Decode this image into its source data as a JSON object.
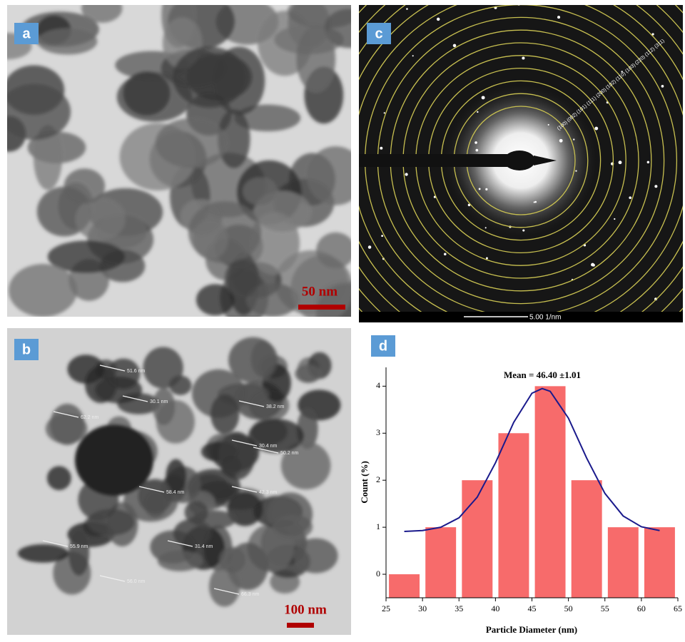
{
  "panels": [
    {
      "label": "a",
      "scale_bar": "50 nm"
    },
    {
      "label": "c",
      "scale_bar": "5.00 1/nm",
      "ring_labels": [
        "(100)",
        "(002)",
        "(101)",
        "(111)",
        "(200)",
        "(102)",
        "(110)",
        "(103)",
        "(220)",
        "(112)",
        "(311)"
      ]
    },
    {
      "label": "b",
      "scale_bar": "100 nm",
      "measurements": [
        "51.6 nm",
        "30.1 nm",
        "62.2 nm",
        "38.2 nm",
        "30.4 nm",
        "50.2 nm",
        "42.3 nm",
        "58.4 nm",
        "55.9 nm",
        "31.4 nm",
        "56.0 nm",
        "66.3 nm"
      ]
    }
  ],
  "chart_data": {
    "type": "histogram",
    "panel_label": "d",
    "title": "Mean = 46.40 ±1.01",
    "x_label": "Particle Diameter (nm)",
    "y_label": "Count (%)",
    "bins": [
      25,
      30,
      35,
      40,
      45,
      50,
      55,
      60,
      65
    ],
    "values": [
      0,
      1,
      2,
      3,
      4,
      2,
      1,
      1
    ],
    "color": "#f76b6b",
    "xlim": [
      25,
      65
    ],
    "xticks": [
      25,
      30,
      35,
      40,
      45,
      50,
      55,
      60,
      65
    ],
    "ylim": [
      -0.5,
      4.4
    ],
    "yticks": [
      0,
      1,
      2,
      3,
      4
    ],
    "fit": {
      "color": "#1a1a8c",
      "x": [
        27.5,
        30,
        32.5,
        35,
        37.5,
        40,
        42.5,
        45,
        46.4,
        47.5,
        50,
        52.5,
        55,
        57.5,
        60,
        62.5
      ],
      "values": [
        0.91,
        0.93,
        1.0,
        1.2,
        1.64,
        2.37,
        3.23,
        3.85,
        3.95,
        3.89,
        3.32,
        2.47,
        1.72,
        1.24,
        1.01,
        0.93
      ]
    }
  }
}
